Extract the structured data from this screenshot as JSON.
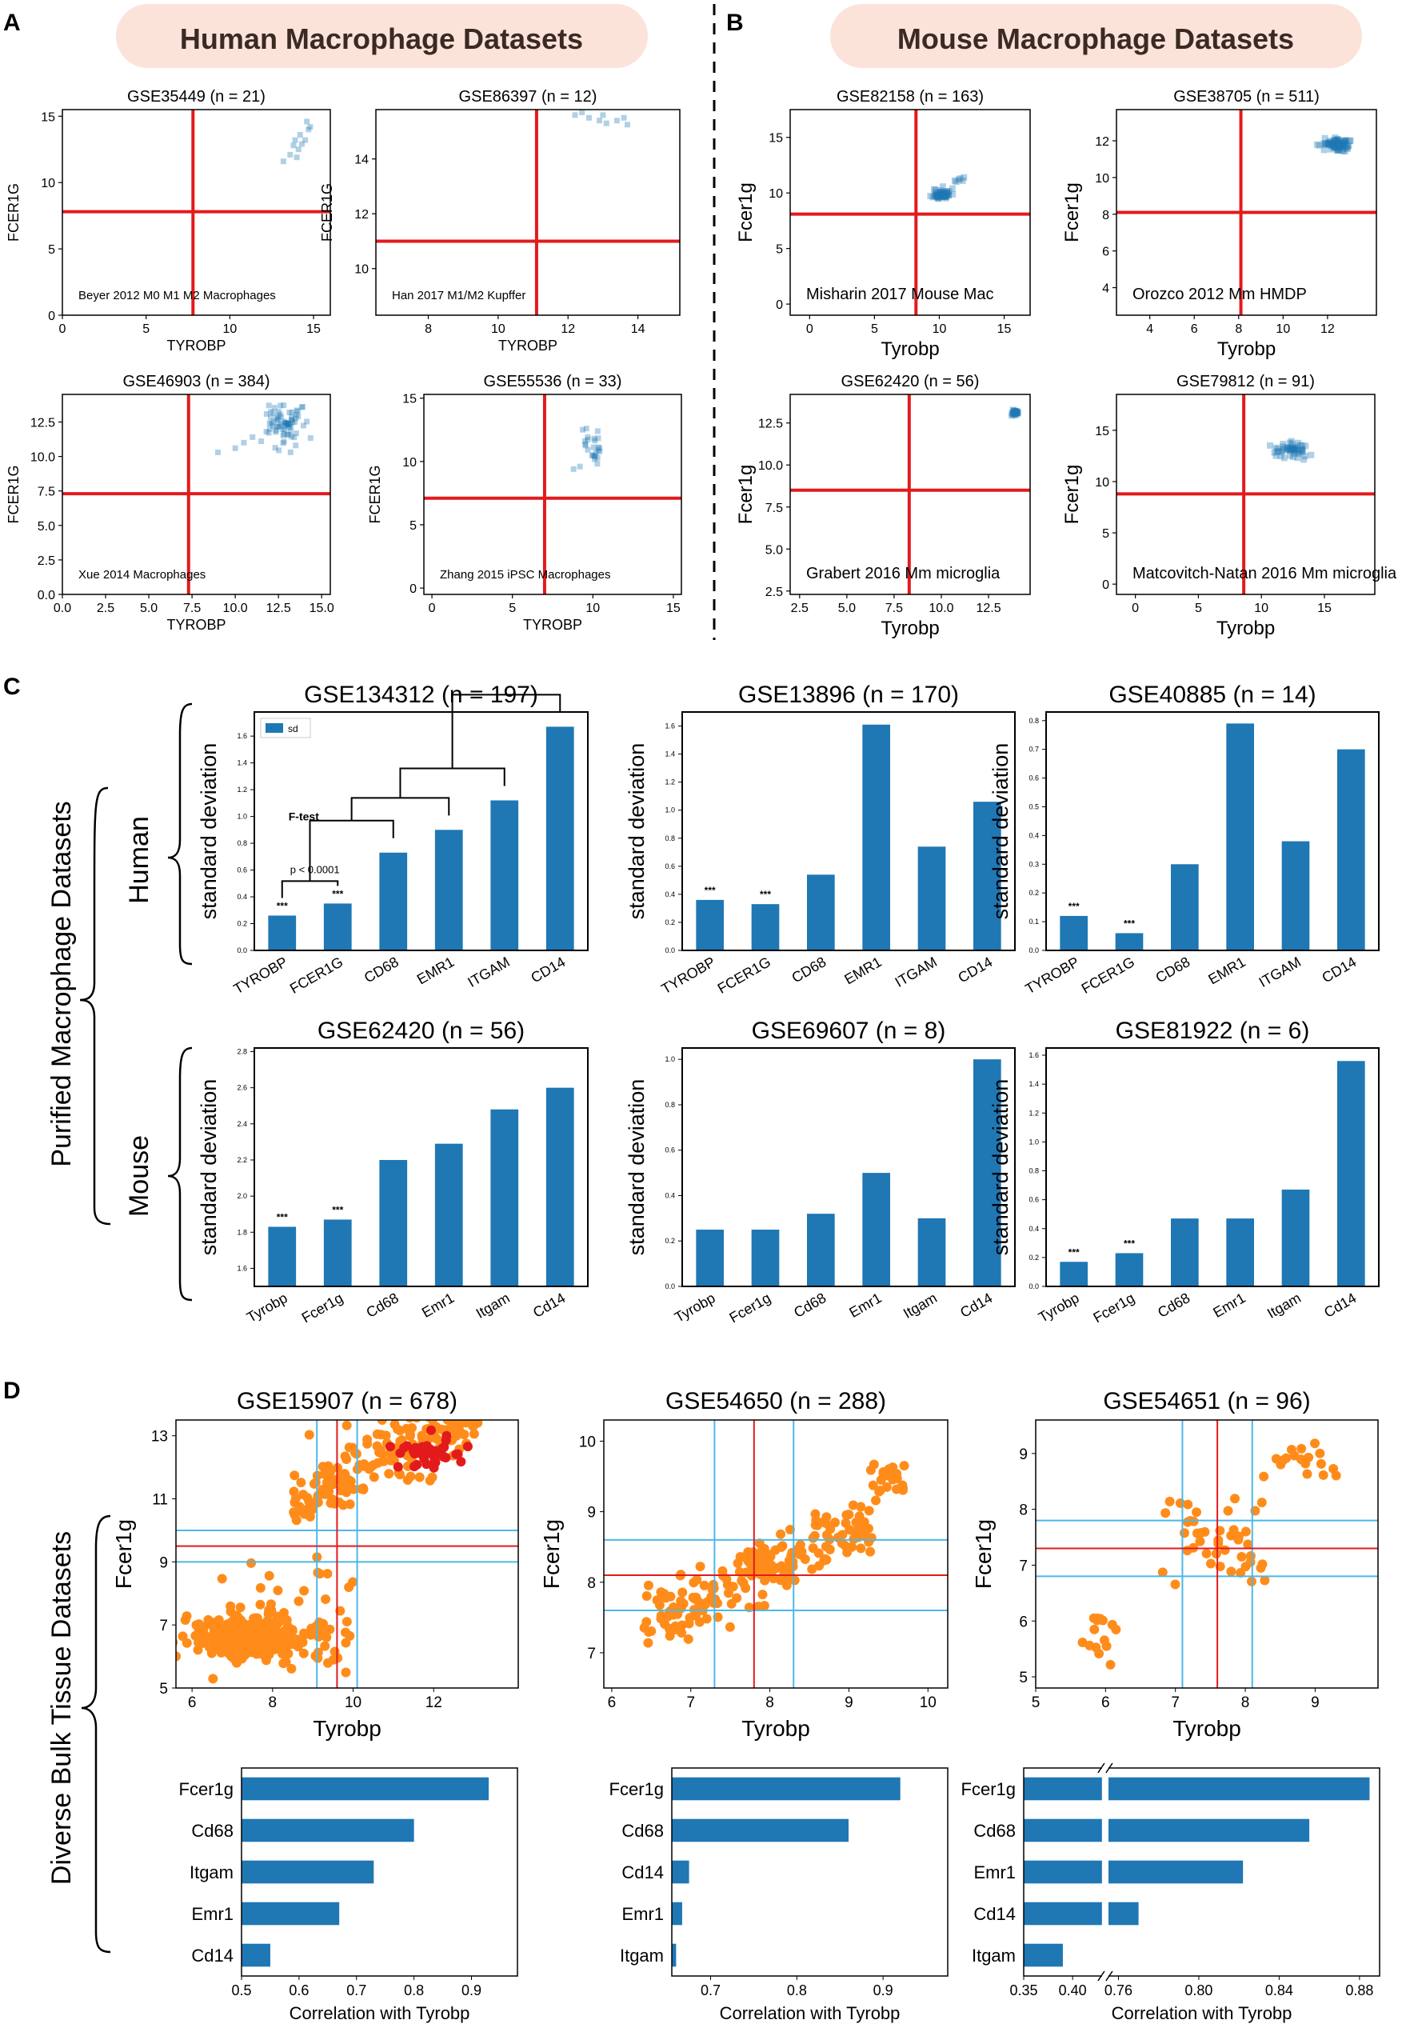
{
  "panels": {
    "A": "A",
    "B": "B",
    "C": "C",
    "D": "D",
    "a_header": "Human Macrophage Datasets",
    "b_header": "Mouse Macrophage Datasets"
  },
  "side_labels": {
    "purified": "Purified Macrophage Datasets",
    "human": "Human",
    "mouse": "Mouse",
    "diverse": "Diverse Bulk Tissue Datasets"
  },
  "colors": {
    "header_bg": "#fbe3da",
    "scatter_blue": "#1f77b4",
    "bar_blue": "#1f77b4",
    "orange": "#ff8c1a",
    "red": "#e31a1c",
    "cyan": "#4db8e8"
  },
  "annotations": {
    "legend_sd": "sd",
    "f_test": "F-test",
    "p_value": "p < 0.0001",
    "stars": "***"
  },
  "chart_data": [
    {
      "id": "a1",
      "type": "scatter",
      "title": "GSE35449 (n = 21)",
      "xlabel": "TYROBP",
      "ylabel": "FCER1G",
      "annotation": "Beyer 2012 M0 M1 M2 Macrophages",
      "xlim": [
        0,
        16
      ],
      "ylim": [
        0,
        15.5
      ],
      "xticks": [
        0,
        5,
        10,
        15
      ],
      "yticks": [
        0,
        5,
        10,
        15
      ],
      "vline": 7.8,
      "hline": 7.8,
      "points": [
        [
          14.6,
          14.6
        ],
        [
          14.8,
          14.2
        ],
        [
          14.2,
          13.6
        ],
        [
          14.5,
          13.2
        ],
        [
          13.8,
          12.8
        ],
        [
          14.1,
          12.5
        ],
        [
          13.6,
          12.1
        ],
        [
          13.2,
          11.6
        ],
        [
          14.0,
          11.9
        ],
        [
          14.7,
          14.0
        ],
        [
          13.9,
          13.2
        ],
        [
          14.3,
          12.9
        ]
      ]
    },
    {
      "id": "a2",
      "type": "scatter",
      "title": "GSE86397 (n = 12)",
      "xlabel": "TYROBP",
      "ylabel": "FCER1G",
      "annotation": "Han 2017 M1/M2 Kupffer",
      "xlim": [
        6.5,
        15.2
      ],
      "ylim": [
        8.3,
        15.8
      ],
      "xticks": [
        8,
        10,
        12,
        14
      ],
      "yticks": [
        10,
        12,
        14
      ],
      "vline": 11.1,
      "hline": 11.0,
      "points": [
        [
          12.2,
          15.6
        ],
        [
          12.6,
          15.5
        ],
        [
          12.9,
          15.4
        ],
        [
          13.1,
          15.3
        ],
        [
          13.4,
          15.4
        ],
        [
          13.7,
          15.25
        ],
        [
          12.4,
          15.7
        ],
        [
          13.0,
          15.6
        ],
        [
          13.6,
          15.5
        ]
      ]
    },
    {
      "id": "a3",
      "type": "scatter",
      "title": "GSE46903 (n = 384)",
      "xlabel": "TYROBP",
      "ylabel": "FCER1G",
      "annotation": "Xue 2014 Macrophages",
      "xlim": [
        0,
        15.5
      ],
      "ylim": [
        0,
        14.5
      ],
      "xticks": [
        0,
        2.5,
        5.0,
        7.5,
        10.0,
        12.5,
        15.0
      ],
      "yticks": [
        0,
        2.5,
        5.0,
        7.5,
        10.0,
        12.5
      ],
      "xtickfmt": 1,
      "ytickfmt": 1,
      "vline": 7.3,
      "hline": 7.3,
      "cluster": {
        "cx": 12.8,
        "cy": 12.4,
        "sx": 0.5,
        "sy": 0.7,
        "n": 70,
        "seed": 7
      },
      "points": [
        [
          9.0,
          10.3
        ],
        [
          10.0,
          10.6
        ],
        [
          10.5,
          11.0
        ],
        [
          11.0,
          11.4
        ],
        [
          11.5,
          11.1
        ],
        [
          11.8,
          11.8
        ],
        [
          13.5,
          10.8
        ],
        [
          13.2,
          10.3
        ],
        [
          13.9,
          13.6
        ],
        [
          12.0,
          12.0
        ]
      ]
    },
    {
      "id": "a4",
      "type": "scatter",
      "title": "GSE55536 (n = 33)",
      "xlabel": "TYROBP",
      "ylabel": "FCER1G",
      "annotation": "Zhang 2015 iPSC Macrophages",
      "xlim": [
        -0.5,
        15.5
      ],
      "ylim": [
        -0.5,
        15.3
      ],
      "xticks": [
        0,
        5,
        10,
        15
      ],
      "yticks": [
        0,
        5,
        10,
        15
      ],
      "vline": 7.0,
      "hline": 7.1,
      "cluster": {
        "cx": 10.1,
        "cy": 11.3,
        "sx": 0.35,
        "sy": 0.7,
        "n": 22,
        "seed": 3
      },
      "points": [
        [
          9.2,
          9.6
        ],
        [
          8.8,
          9.4
        ],
        [
          9.6,
          12.6
        ],
        [
          10.3,
          12.4
        ],
        [
          10.0,
          10.5
        ]
      ]
    },
    {
      "id": "b1",
      "type": "scatter",
      "title": "GSE82158 (n = 163)",
      "xlabel": "Tyrobp",
      "ylabel": "Fcer1g",
      "annotation": "Misharin 2017 Mouse Mac",
      "xlim": [
        -1.5,
        17
      ],
      "ylim": [
        -1,
        17.5
      ],
      "xticks": [
        0,
        5,
        10,
        15
      ],
      "yticks": [
        0,
        5,
        10,
        15
      ],
      "vline": 8.2,
      "hline": 8.1,
      "cluster": {
        "cx": 10.2,
        "cy": 9.9,
        "sx": 0.35,
        "sy": 0.25,
        "n": 60,
        "seed": 11
      },
      "points": [
        [
          11.3,
          11.0
        ],
        [
          11.6,
          11.3
        ],
        [
          11.9,
          11.4
        ],
        [
          11.5,
          11.2
        ],
        [
          11.8,
          11.1
        ],
        [
          11.2,
          11.1
        ]
      ]
    },
    {
      "id": "b2",
      "type": "scatter",
      "title": "GSE38705 (n = 511)",
      "xlabel": "Tyrobp",
      "ylabel": "Fcer1g",
      "annotation": "Orozco 2012 Mm HMDP",
      "xlim": [
        2.5,
        14.2
      ],
      "ylim": [
        2.5,
        13.7
      ],
      "xticks": [
        4,
        6,
        8,
        10,
        12
      ],
      "yticks": [
        4,
        6,
        8,
        10,
        12
      ],
      "vline": 8.1,
      "hline": 8.1,
      "cluster": {
        "cx": 12.5,
        "cy": 11.8,
        "sx": 0.3,
        "sy": 0.16,
        "n": 90,
        "seed": 5
      },
      "points": []
    },
    {
      "id": "b3",
      "type": "scatter",
      "title": "GSE62420 (n = 56)",
      "xlabel": "Tyrobp",
      "ylabel": "Fcer1g",
      "annotation": "Grabert 2016 Mm microglia",
      "xlim": [
        2.0,
        14.7
      ],
      "ylim": [
        2.3,
        14.2
      ],
      "xticks": [
        2.5,
        5.0,
        7.5,
        10.0,
        12.5
      ],
      "yticks": [
        2.5,
        5.0,
        7.5,
        10.0,
        12.5
      ],
      "xtickfmt": 1,
      "ytickfmt": 1,
      "vline": 8.3,
      "hline": 8.5,
      "cluster": {
        "cx": 13.9,
        "cy": 13.1,
        "sx": 0.08,
        "sy": 0.1,
        "n": 30,
        "seed": 9
      },
      "points": []
    },
    {
      "id": "b4",
      "type": "scatter",
      "title": "GSE79812 (n = 91)",
      "xlabel": "Tyrobp",
      "ylabel": "Fcer1g",
      "annotation": "Matcovitch-Natan 2016 Mm microglia",
      "xlim": [
        -1.5,
        19
      ],
      "ylim": [
        -1,
        18.5
      ],
      "xticks": [
        0,
        5,
        10,
        15
      ],
      "yticks": [
        0,
        5,
        10,
        15
      ],
      "vline": 8.6,
      "hline": 8.8,
      "cluster": {
        "cx": 12.3,
        "cy": 13.1,
        "sx": 0.7,
        "sy": 0.4,
        "n": 55,
        "seed": 13
      },
      "points": []
    },
    {
      "id": "c1",
      "type": "bar",
      "title": "GSE134312 (n = 197)",
      "ylabel": "standard deviation",
      "categories": [
        "TYROBP",
        "FCER1G",
        "CD68",
        "EMR1",
        "ITGAM",
        "CD14"
      ],
      "values": [
        0.26,
        0.35,
        0.73,
        0.9,
        1.12,
        1.67
      ],
      "ylim": [
        0,
        1.78
      ],
      "yticks": [
        0,
        0.2,
        0.4,
        0.6,
        0.8,
        1.0,
        1.2,
        1.4,
        1.6
      ],
      "ybase": 0,
      "stars": [
        0,
        1
      ],
      "legend": true,
      "ftest": true
    },
    {
      "id": "c2",
      "type": "bar",
      "title": "GSE13896 (n = 170)",
      "ylabel": "standard deviation",
      "categories": [
        "TYROBP",
        "FCER1G",
        "CD68",
        "EMR1",
        "ITGAM",
        "CD14"
      ],
      "values": [
        0.36,
        0.33,
        0.54,
        1.61,
        0.74,
        1.06
      ],
      "ylim": [
        0,
        1.7
      ],
      "yticks": [
        0,
        0.2,
        0.4,
        0.6,
        0.8,
        1.0,
        1.2,
        1.4,
        1.6
      ],
      "ybase": 0,
      "stars": [
        0,
        1
      ]
    },
    {
      "id": "c3",
      "type": "bar",
      "title": "GSE40885 (n = 14)",
      "ylabel": "standard deviation",
      "categories": [
        "TYROBP",
        "FCER1G",
        "CD68",
        "EMR1",
        "ITGAM",
        "CD14"
      ],
      "values": [
        0.12,
        0.06,
        0.3,
        0.79,
        0.38,
        0.7
      ],
      "ylim": [
        0,
        0.83
      ],
      "yticks": [
        0,
        0.1,
        0.2,
        0.3,
        0.4,
        0.5,
        0.6,
        0.7,
        0.8
      ],
      "ybase": 0,
      "stars": [
        0,
        1
      ]
    },
    {
      "id": "c4",
      "type": "bar",
      "title": "GSE62420 (n = 56)",
      "ylabel": "standard deviation",
      "categories": [
        "Tyrobp",
        "Fcer1g",
        "Cd68",
        "Emr1",
        "Itgam",
        "Cd14"
      ],
      "values": [
        1.83,
        1.87,
        2.2,
        2.29,
        2.48,
        2.6
      ],
      "ylim": [
        1.5,
        2.82
      ],
      "yticks": [
        1.6,
        1.8,
        2.0,
        2.2,
        2.4,
        2.6,
        2.8
      ],
      "ybase": 1.5,
      "stars": [
        0,
        1
      ]
    },
    {
      "id": "c5",
      "type": "bar",
      "title": "GSE69607 (n = 8)",
      "ylabel": "standard deviation",
      "categories": [
        "Tyrobp",
        "Fcer1g",
        "Cd68",
        "Emr1",
        "Itgam",
        "Cd14"
      ],
      "values": [
        0.25,
        0.25,
        0.32,
        0.5,
        0.3,
        1.0
      ],
      "ylim": [
        0,
        1.05
      ],
      "yticks": [
        0,
        0.2,
        0.4,
        0.6,
        0.8,
        1.0
      ],
      "ybase": 0,
      "stars": []
    },
    {
      "id": "c6",
      "type": "bar",
      "title": "GSE81922 (n = 6)",
      "ylabel": "standard deviation",
      "categories": [
        "Tyrobp",
        "Fcer1g",
        "Cd68",
        "Emr1",
        "Itgam",
        "Cd14"
      ],
      "values": [
        0.17,
        0.23,
        0.47,
        0.47,
        0.67,
        1.56
      ],
      "ylim": [
        0,
        1.65
      ],
      "yticks": [
        0,
        0.2,
        0.4,
        0.6,
        0.8,
        1.0,
        1.2,
        1.4,
        1.6
      ],
      "ybase": 0,
      "stars": [
        0,
        1
      ]
    },
    {
      "id": "d1",
      "type": "scatter",
      "title": "GSE15907 (n = 678)",
      "xlabel": "Tyrobp",
      "ylabel": "Fcer1g",
      "xlim": [
        5.6,
        14.1
      ],
      "ylim": [
        5,
        13.5
      ],
      "xticks": [
        6,
        8,
        10,
        12
      ],
      "yticks": [
        5,
        7,
        9,
        11,
        13
      ],
      "red_v": 9.6,
      "red_h": 9.5,
      "cyan_v": [
        9.1,
        10.1
      ],
      "cyan_h": [
        9.0,
        10.0
      ],
      "seed": 21
    },
    {
      "id": "d2",
      "type": "scatter",
      "title": "GSE54650 (n = 288)",
      "xlabel": "Tyrobp",
      "ylabel": "Fcer1g",
      "xlim": [
        5.9,
        10.25
      ],
      "ylim": [
        6.5,
        10.3
      ],
      "xticks": [
        6,
        7,
        8,
        9,
        10
      ],
      "yticks": [
        7,
        8,
        9,
        10
      ],
      "red_v": 7.8,
      "red_h": 8.1,
      "cyan_v": [
        7.3,
        8.3
      ],
      "cyan_h": [
        7.6,
        8.6
      ],
      "seed": 31
    },
    {
      "id": "d3",
      "type": "scatter",
      "title": "GSE54651 (n = 96)",
      "xlabel": "Tyrobp",
      "ylabel": "Fcer1g",
      "xlim": [
        5,
        9.9
      ],
      "ylim": [
        4.8,
        9.6
      ],
      "xticks": [
        5,
        6,
        7,
        8,
        9
      ],
      "yticks": [
        5,
        6,
        7,
        8,
        9
      ],
      "red_v": 7.6,
      "red_h": 7.3,
      "cyan_v": [
        7.1,
        8.1
      ],
      "cyan_h": [
        6.8,
        7.8
      ],
      "seed": 41
    },
    {
      "id": "d4",
      "type": "bar",
      "orientation": "horizontal",
      "xlabel": "Correlation with Tyrobp",
      "categories": [
        "Fcer1g",
        "Cd68",
        "Itgam",
        "Emr1",
        "Cd14"
      ],
      "values": [
        0.93,
        0.8,
        0.73,
        0.67,
        0.55
      ],
      "xlim": [
        0.5,
        0.98
      ],
      "xticks": [
        0.5,
        0.6,
        0.7,
        0.8,
        0.9
      ]
    },
    {
      "id": "d5",
      "type": "bar",
      "orientation": "horizontal",
      "xlabel": "Correlation with Tyrobp",
      "categories": [
        "Fcer1g",
        "Cd68",
        "Cd14",
        "Emr1",
        "Itgam"
      ],
      "values": [
        0.92,
        0.86,
        0.675,
        0.667,
        0.66
      ],
      "xlim": [
        0.655,
        0.975
      ],
      "xticks": [
        0.7,
        0.8,
        0.9
      ]
    },
    {
      "id": "d6",
      "type": "bar",
      "orientation": "horizontal",
      "broken": true,
      "xlabel": "Correlation with Tyrobp",
      "categories": [
        "Fcer1g",
        "Cd68",
        "Emr1",
        "Cd14",
        "Itgam"
      ],
      "values": [
        0.885,
        0.855,
        0.822,
        0.77,
        0.39
      ],
      "xlim_left": [
        0.35,
        0.43
      ],
      "xlim_right": [
        0.755,
        0.89
      ],
      "xticks_left": [
        0.35,
        0.4
      ],
      "xticks_right": [
        0.76,
        0.8,
        0.84,
        0.88
      ]
    }
  ]
}
